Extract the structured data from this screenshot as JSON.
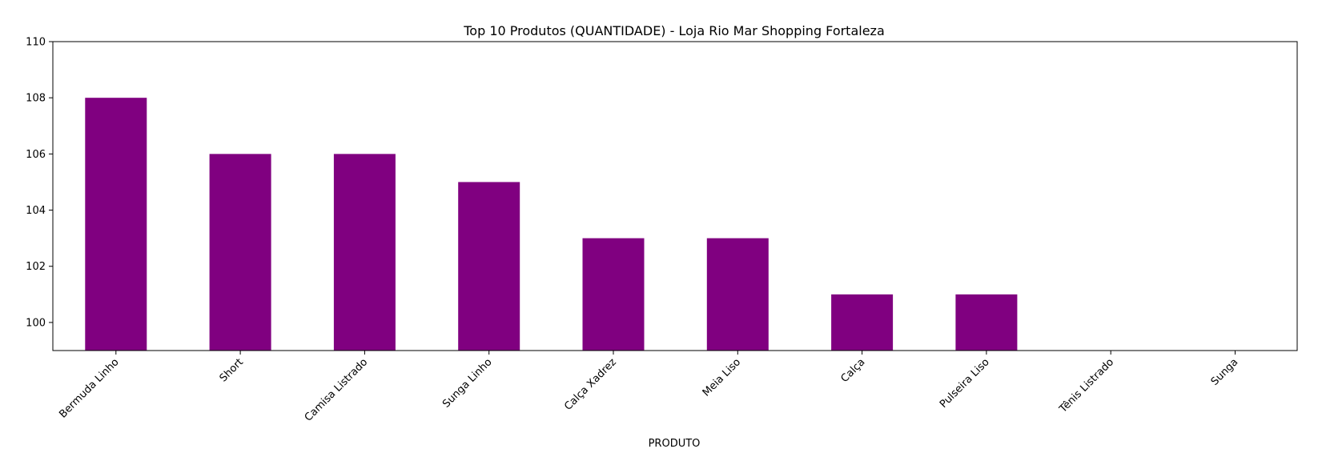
{
  "chart_data": {
    "type": "bar",
    "title": "Top 10 Produtos (QUANTIDADE) - Loja Rio Mar Shopping Fortaleza",
    "xlabel": "PRODUTO",
    "ylabel": "",
    "categories": [
      "Bermuda Linho",
      "Short",
      "Camisa Listrado",
      "Sunga Linho",
      "Calça Xadrez",
      "Meia Liso",
      "Calça",
      "Pulseira Liso",
      "Tênis Listrado",
      "Sunga"
    ],
    "values": [
      108,
      106,
      106,
      105,
      103,
      103,
      101,
      101,
      99,
      99
    ],
    "ylim": [
      99,
      110
    ],
    "yticks": [
      100,
      102,
      104,
      106,
      108,
      110
    ],
    "bar_color": "#800080",
    "grid": false,
    "legend": false
  }
}
